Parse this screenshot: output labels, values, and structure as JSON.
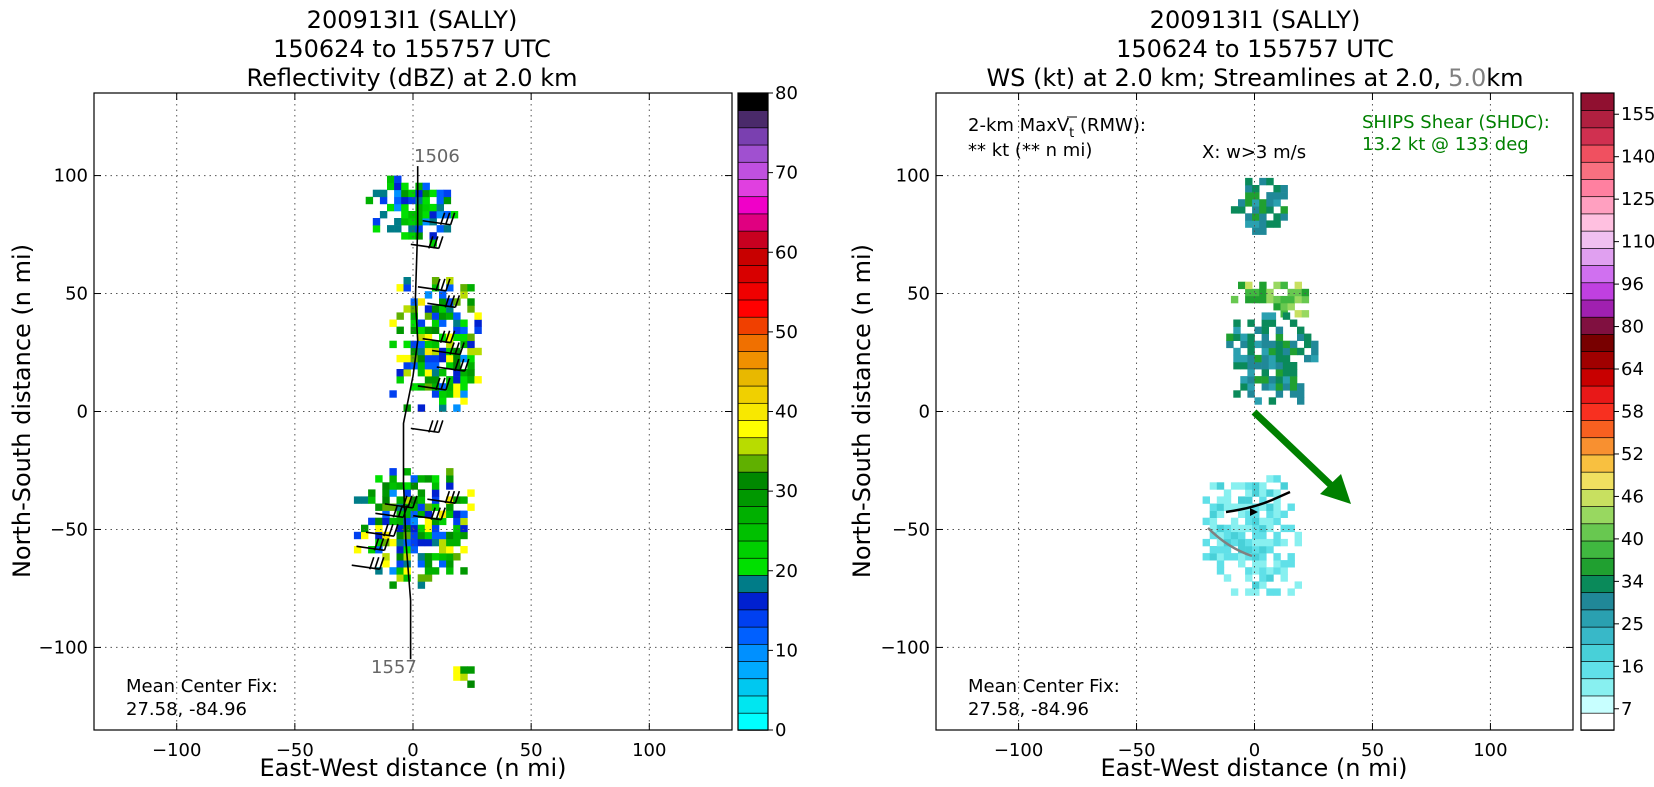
{
  "panels": [
    {
      "title_lines": [
        "200913I1 (SALLY)",
        "150624 to 155757 UTC",
        "Reflectivity (dBZ) at 2.0 km"
      ],
      "xlabel": "East-West distance (n mi)",
      "ylabel": "North-South distance (n mi)",
      "start_label": "1506",
      "end_label": "1557",
      "center_fix_label": "Mean Center Fix:",
      "center_fix_value": "27.58, -84.96",
      "colorbar_ticks": [
        "0",
        "10",
        "20",
        "30",
        "40",
        "50",
        "60",
        "70",
        "80"
      ]
    },
    {
      "title_lines": [
        "200913I1 (SALLY)",
        "150624 to 155757 UTC"
      ],
      "title3_a": "WS (kt) at 2.0 km; Streamlines at 2.0,",
      "title3_b": "5.0",
      "title3_c": "km",
      "xlabel": "East-West distance (n mi)",
      "ylabel": "North-South distance (n mi)",
      "maxvt_label": "2-km MaxV",
      "maxvt_sub": "t",
      "maxvt_rmw": " (RMW):",
      "maxvt_value": "** kt (** n mi)",
      "w_label": "X: w>3 m/s",
      "ships_label": "SHIPS Shear (SHDC):",
      "ships_value": "13.2 kt @ 133 deg",
      "center_fix_label": "Mean Center Fix:",
      "center_fix_value": "27.58, -84.96",
      "colorbar_ticks": [
        "7",
        "16",
        "25",
        "34",
        "40",
        "46",
        "52",
        "58",
        "64",
        "80",
        "96",
        "110",
        "125",
        "140",
        "155"
      ]
    }
  ],
  "axis_ticks": {
    "x": [
      "−100",
      "−50",
      "0",
      "50",
      "100"
    ],
    "y": [
      "100",
      "50",
      "0",
      "−50",
      "−100"
    ]
  },
  "colors": {
    "shear_arrow": "#008000",
    "reflectivity_scale": [
      "#00ffff",
      "#00e6f0",
      "#00c8f0",
      "#00aaff",
      "#0090ff",
      "#0060ff",
      "#0040f0",
      "#0020d0",
      "#007c88",
      "#00e000",
      "#00d000",
      "#00c000",
      "#00b000",
      "#009800",
      "#008800",
      "#60b000",
      "#b8dc00",
      "#ffff00",
      "#f8e800",
      "#f0d000",
      "#e8b800",
      "#f09000",
      "#f07000",
      "#f04000",
      "#ff0000",
      "#f00000",
      "#d80000",
      "#c80000",
      "#c80020",
      "#e00080",
      "#f000c8",
      "#e040e0",
      "#c050e0",
      "#a050d0",
      "#7a40b0",
      "#4a2a6a",
      "#000000"
    ],
    "windspeed_scale": [
      "#ffffff",
      "#c8ffff",
      "#88f0f0",
      "#60e0e8",
      "#48d0d8",
      "#38b8c8",
      "#2aa0b0",
      "#208898",
      "#0a8a5a",
      "#20a030",
      "#40b840",
      "#68c850",
      "#98d860",
      "#c8e060",
      "#f0e060",
      "#f8c040",
      "#f89030",
      "#f86020",
      "#f83020",
      "#e81818",
      "#c80000",
      "#a00000",
      "#780000",
      "#801040",
      "#a020b0",
      "#c040e0",
      "#d070f0",
      "#e0a0f0",
      "#f0c0f0",
      "#ffc0e0",
      "#ffa0c0",
      "#ff80a0",
      "#f87080",
      "#f05060",
      "#d03050",
      "#b02040",
      "#901030"
    ]
  },
  "chart_data": [
    {
      "type": "heatmap",
      "title": "200913I1 (SALLY) 150624 to 155757 UTC Reflectivity (dBZ) at 2.0 km",
      "xlabel": "East-West distance (n mi)",
      "ylabel": "North-South distance (n mi)",
      "xlim": [
        -135,
        135
      ],
      "ylim": [
        -135,
        135
      ],
      "grid": true,
      "colorbar": {
        "label": "dBZ",
        "range": [
          0,
          80
        ],
        "ticks": [
          0,
          10,
          20,
          30,
          40,
          50,
          60,
          70,
          80
        ]
      },
      "flight_track": [
        [
          2,
          104
        ],
        [
          2,
          78
        ],
        [
          1,
          48
        ],
        [
          2,
          30
        ],
        [
          0,
          15
        ],
        [
          -4,
          -5
        ],
        [
          -4,
          -30
        ],
        [
          -3,
          -55
        ],
        [
          -1,
          -80
        ],
        [
          -1,
          -105
        ]
      ],
      "echo_regions": [
        {
          "x_range": [
            -20,
            18
          ],
          "y_range": [
            70,
            100
          ],
          "dbz_range": [
            10,
            30
          ]
        },
        {
          "x_range": [
            -10,
            28
          ],
          "y_range": [
            0,
            55
          ],
          "dbz_range": [
            10,
            40
          ]
        },
        {
          "x_range": [
            -25,
            25
          ],
          "y_range": [
            -75,
            -25
          ],
          "dbz_range": [
            10,
            40
          ]
        },
        {
          "x_range": [
            14,
            26
          ],
          "y_range": [
            -117,
            -108
          ],
          "dbz_range": [
            25,
            40
          ]
        }
      ]
    },
    {
      "type": "heatmap",
      "title": "200913I1 (SALLY) 150624 to 155757 UTC WS (kt) at 2.0 km; Streamlines at 2.0, 5.0 km",
      "xlabel": "East-West distance (n mi)",
      "ylabel": "North-South distance (n mi)",
      "xlim": [
        -135,
        135
      ],
      "ylim": [
        -135,
        135
      ],
      "grid": true,
      "colorbar": {
        "label": "kt",
        "range": [
          7,
          160
        ],
        "ticks": [
          7,
          16,
          25,
          34,
          40,
          46,
          52,
          58,
          64,
          80,
          96,
          110,
          125,
          140,
          155
        ]
      },
      "shear": {
        "speed_kt": 13.2,
        "direction_deg": 133
      },
      "wind_regions": [
        {
          "x_range": [
            -10,
            12
          ],
          "y_range": [
            75,
            98
          ],
          "kt_range": [
            34,
            46
          ]
        },
        {
          "x_range": [
            -10,
            25
          ],
          "y_range": [
            40,
            55
          ],
          "kt_range": [
            46,
            64
          ]
        },
        {
          "x_range": [
            -12,
            25
          ],
          "y_range": [
            0,
            40
          ],
          "kt_range": [
            34,
            46
          ]
        },
        {
          "x_range": [
            -22,
            20
          ],
          "y_range": [
            -78,
            -28
          ],
          "kt_range": [
            16,
            25
          ]
        }
      ]
    }
  ]
}
